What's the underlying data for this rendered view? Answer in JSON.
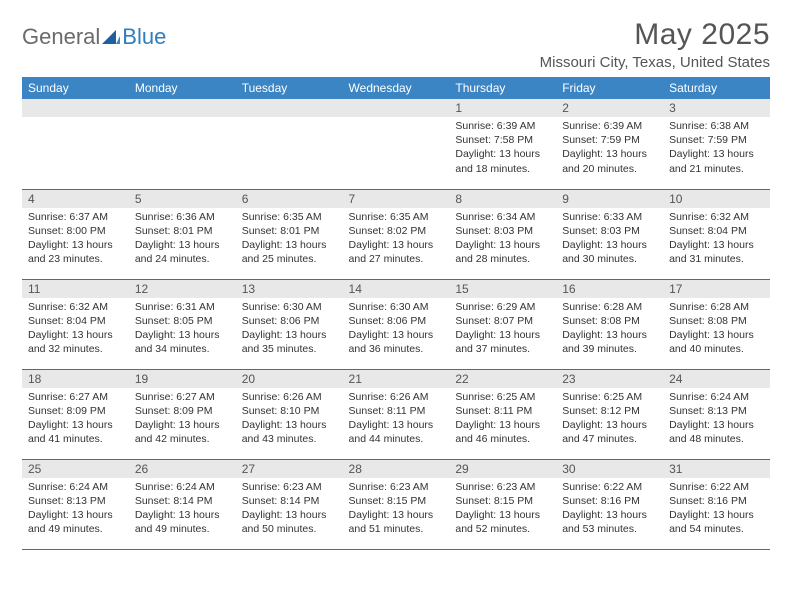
{
  "logo": {
    "text1": "General",
    "text2": "Blue"
  },
  "title": "May 2025",
  "location": "Missouri City, Texas, United States",
  "colors": {
    "header_bg": "#3b85c4",
    "row_divider": "#3b6fa5",
    "daynum_bg": "#e8e8e8",
    "logo_gray": "#6b6b6b",
    "logo_blue": "#2f7fbf",
    "text": "#333333",
    "title_text": "#555555"
  },
  "weekdays": [
    "Sunday",
    "Monday",
    "Tuesday",
    "Wednesday",
    "Thursday",
    "Friday",
    "Saturday"
  ],
  "weeks": [
    [
      null,
      null,
      null,
      null,
      {
        "n": "1",
        "sr": "6:39 AM",
        "ss": "7:58 PM",
        "dl": "13 hours and 18 minutes."
      },
      {
        "n": "2",
        "sr": "6:39 AM",
        "ss": "7:59 PM",
        "dl": "13 hours and 20 minutes."
      },
      {
        "n": "3",
        "sr": "6:38 AM",
        "ss": "7:59 PM",
        "dl": "13 hours and 21 minutes."
      }
    ],
    [
      {
        "n": "4",
        "sr": "6:37 AM",
        "ss": "8:00 PM",
        "dl": "13 hours and 23 minutes."
      },
      {
        "n": "5",
        "sr": "6:36 AM",
        "ss": "8:01 PM",
        "dl": "13 hours and 24 minutes."
      },
      {
        "n": "6",
        "sr": "6:35 AM",
        "ss": "8:01 PM",
        "dl": "13 hours and 25 minutes."
      },
      {
        "n": "7",
        "sr": "6:35 AM",
        "ss": "8:02 PM",
        "dl": "13 hours and 27 minutes."
      },
      {
        "n": "8",
        "sr": "6:34 AM",
        "ss": "8:03 PM",
        "dl": "13 hours and 28 minutes."
      },
      {
        "n": "9",
        "sr": "6:33 AM",
        "ss": "8:03 PM",
        "dl": "13 hours and 30 minutes."
      },
      {
        "n": "10",
        "sr": "6:32 AM",
        "ss": "8:04 PM",
        "dl": "13 hours and 31 minutes."
      }
    ],
    [
      {
        "n": "11",
        "sr": "6:32 AM",
        "ss": "8:04 PM",
        "dl": "13 hours and 32 minutes."
      },
      {
        "n": "12",
        "sr": "6:31 AM",
        "ss": "8:05 PM",
        "dl": "13 hours and 34 minutes."
      },
      {
        "n": "13",
        "sr": "6:30 AM",
        "ss": "8:06 PM",
        "dl": "13 hours and 35 minutes."
      },
      {
        "n": "14",
        "sr": "6:30 AM",
        "ss": "8:06 PM",
        "dl": "13 hours and 36 minutes."
      },
      {
        "n": "15",
        "sr": "6:29 AM",
        "ss": "8:07 PM",
        "dl": "13 hours and 37 minutes."
      },
      {
        "n": "16",
        "sr": "6:28 AM",
        "ss": "8:08 PM",
        "dl": "13 hours and 39 minutes."
      },
      {
        "n": "17",
        "sr": "6:28 AM",
        "ss": "8:08 PM",
        "dl": "13 hours and 40 minutes."
      }
    ],
    [
      {
        "n": "18",
        "sr": "6:27 AM",
        "ss": "8:09 PM",
        "dl": "13 hours and 41 minutes."
      },
      {
        "n": "19",
        "sr": "6:27 AM",
        "ss": "8:09 PM",
        "dl": "13 hours and 42 minutes."
      },
      {
        "n": "20",
        "sr": "6:26 AM",
        "ss": "8:10 PM",
        "dl": "13 hours and 43 minutes."
      },
      {
        "n": "21",
        "sr": "6:26 AM",
        "ss": "8:11 PM",
        "dl": "13 hours and 44 minutes."
      },
      {
        "n": "22",
        "sr": "6:25 AM",
        "ss": "8:11 PM",
        "dl": "13 hours and 46 minutes."
      },
      {
        "n": "23",
        "sr": "6:25 AM",
        "ss": "8:12 PM",
        "dl": "13 hours and 47 minutes."
      },
      {
        "n": "24",
        "sr": "6:24 AM",
        "ss": "8:13 PM",
        "dl": "13 hours and 48 minutes."
      }
    ],
    [
      {
        "n": "25",
        "sr": "6:24 AM",
        "ss": "8:13 PM",
        "dl": "13 hours and 49 minutes."
      },
      {
        "n": "26",
        "sr": "6:24 AM",
        "ss": "8:14 PM",
        "dl": "13 hours and 49 minutes."
      },
      {
        "n": "27",
        "sr": "6:23 AM",
        "ss": "8:14 PM",
        "dl": "13 hours and 50 minutes."
      },
      {
        "n": "28",
        "sr": "6:23 AM",
        "ss": "8:15 PM",
        "dl": "13 hours and 51 minutes."
      },
      {
        "n": "29",
        "sr": "6:23 AM",
        "ss": "8:15 PM",
        "dl": "13 hours and 52 minutes."
      },
      {
        "n": "30",
        "sr": "6:22 AM",
        "ss": "8:16 PM",
        "dl": "13 hours and 53 minutes."
      },
      {
        "n": "31",
        "sr": "6:22 AM",
        "ss": "8:16 PM",
        "dl": "13 hours and 54 minutes."
      }
    ]
  ],
  "labels": {
    "sunrise": "Sunrise:",
    "sunset": "Sunset:",
    "daylight": "Daylight:"
  }
}
